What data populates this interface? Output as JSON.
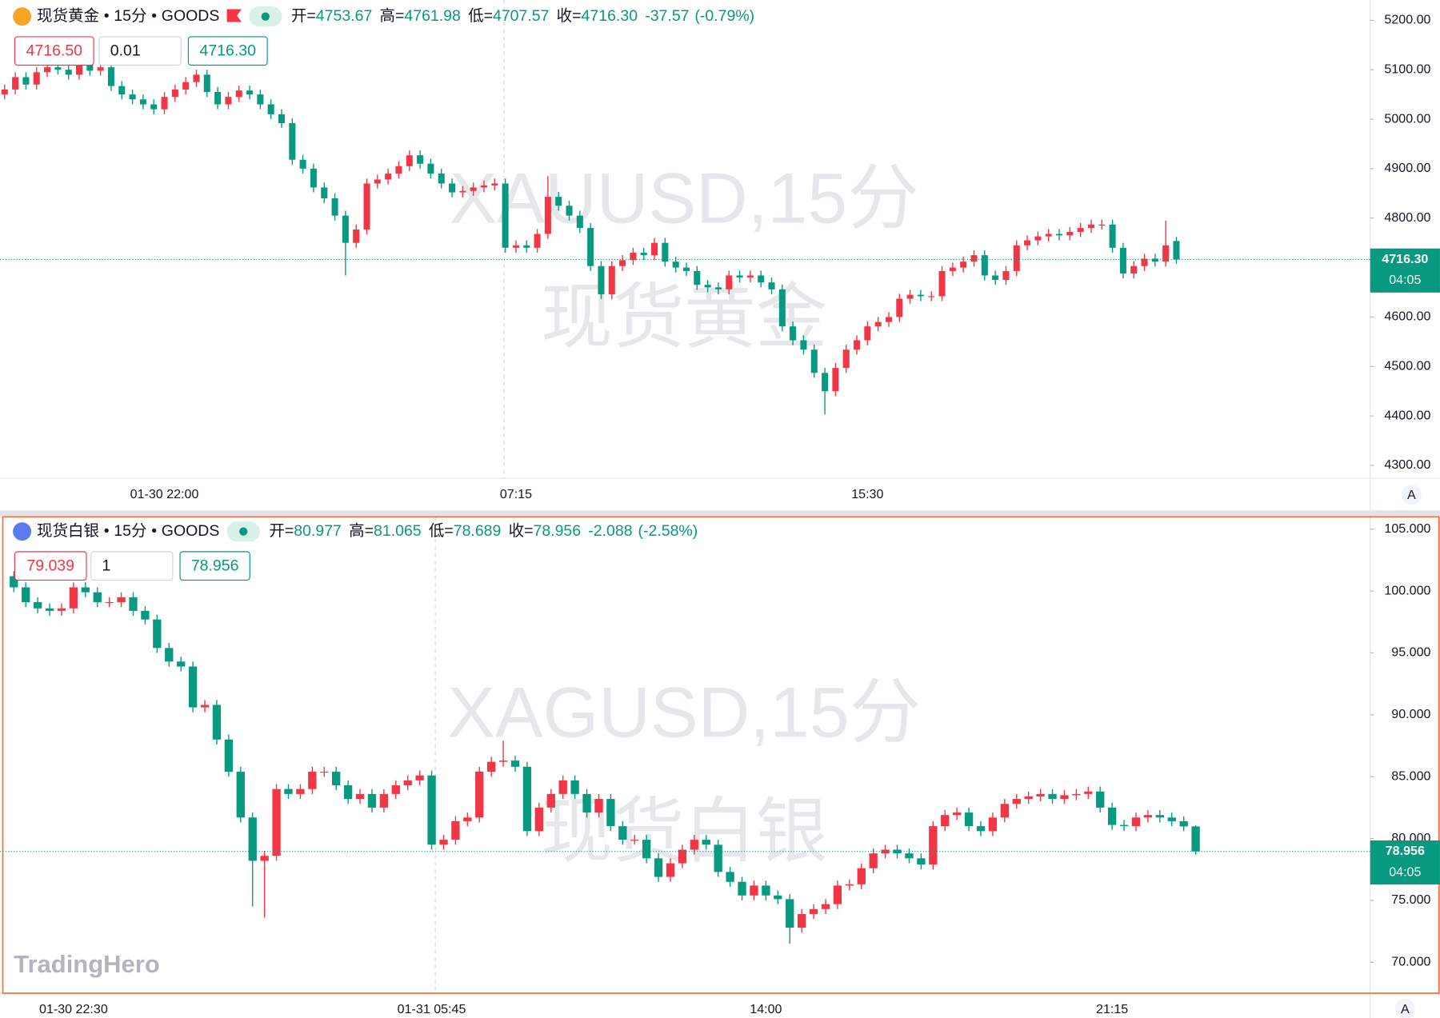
{
  "chart_data": [
    {
      "type": "candlestick",
      "symbol": "现货黄金",
      "separator": "•",
      "interval": "15分",
      "exchange": "GOODS",
      "ohlc_header": [
        {
          "label": "开=",
          "value": "4753.67"
        },
        {
          "label": "高=",
          "value": "4761.98"
        },
        {
          "label": "低=",
          "value": "4707.57"
        },
        {
          "label": "收=",
          "value": "4716.30"
        }
      ],
      "change": "-37.57",
      "change_pct": "(-0.79%)",
      "sell_price": "4716.50",
      "quantity": "0.01",
      "buy_price": "4716.30",
      "watermark": [
        "XAUUSD,15分",
        "现货黄金"
      ],
      "last_price_label": "4716.30",
      "countdown": "04:05",
      "axis_button": "A",
      "up_color": "#f23645",
      "down_color": "#089981",
      "grid": false,
      "ylim": [
        4274,
        5241
      ],
      "yticks": [
        {
          "value": 5200,
          "label": "5200.00"
        },
        {
          "value": 5100,
          "label": "5100.00"
        },
        {
          "value": 5000,
          "label": "5000.00"
        },
        {
          "value": 4900,
          "label": "4900.00"
        },
        {
          "value": 4800,
          "label": "4800.00"
        },
        {
          "value": 4700,
          "label": "4700.00"
        },
        {
          "value": 4600,
          "label": "4600.00"
        },
        {
          "value": 4500,
          "label": "4500.00"
        },
        {
          "value": 4400,
          "label": "4400.00"
        },
        {
          "value": 4300,
          "label": "4300.00"
        }
      ],
      "categories": [
        null,
        null,
        null,
        null,
        null,
        null,
        null,
        null,
        null,
        null,
        null,
        null,
        null,
        null,
        null,
        "01-30 22:00",
        null,
        null,
        null,
        null,
        null,
        null,
        null,
        null,
        null,
        null,
        null,
        null,
        null,
        null,
        null,
        null,
        null,
        null,
        null,
        null,
        null,
        null,
        null,
        null,
        null,
        null,
        null,
        null,
        null,
        null,
        null,
        null,
        "07:15",
        null,
        null,
        null,
        null,
        null,
        null,
        null,
        null,
        null,
        null,
        null,
        null,
        null,
        null,
        null,
        null,
        null,
        null,
        null,
        null,
        null,
        null,
        null,
        null,
        null,
        null,
        null,
        null,
        null,
        null,
        null,
        null,
        "15:30",
        null,
        null,
        null,
        null,
        null,
        null,
        null,
        null,
        null,
        null,
        null,
        null,
        null,
        null,
        null,
        null,
        null,
        null,
        null,
        null,
        null,
        null,
        null,
        null,
        null,
        null,
        null,
        null,
        null
      ],
      "open": [
        5050,
        5060,
        5085,
        5070,
        5095,
        5105,
        5100,
        5090,
        5110,
        5098,
        5105,
        5067,
        5050,
        5040,
        5030,
        5020,
        5045,
        5060,
        5075,
        5090,
        5055,
        5030,
        5045,
        5058,
        5050,
        5030,
        5010,
        4992,
        4918,
        4900,
        4862,
        4840,
        4805,
        4750,
        4777,
        4870,
        4878,
        4890,
        4905,
        4927,
        4910,
        4890,
        4870,
        4852,
        4855,
        4862,
        4866,
        4870,
        4740,
        4745,
        4740,
        4768,
        4843,
        4825,
        4805,
        4780,
        4703,
        4646,
        4703,
        4715,
        4730,
        4725,
        4750,
        4712,
        4700,
        4693,
        4665,
        4660,
        4656,
        4684,
        4680,
        4684,
        4670,
        4656,
        4581,
        4553,
        4534,
        4487,
        4450,
        4497,
        4534,
        4553,
        4581,
        4590,
        4600,
        4637,
        4645,
        4642,
        4642,
        4693,
        4700,
        4712,
        4725,
        4684,
        4675,
        4693,
        4745,
        4755,
        4763,
        4768,
        4765,
        4772,
        4780,
        4787,
        4787,
        4740,
        4688,
        4703,
        4718,
        4712,
        4753.67
      ],
      "high": [
        5070,
        5095,
        5095,
        5105,
        5115,
        5115,
        5110,
        5120,
        5120,
        5115,
        5115,
        5077,
        5060,
        5050,
        5040,
        5055,
        5070,
        5085,
        5100,
        5100,
        5065,
        5055,
        5068,
        5068,
        5060,
        5040,
        5020,
        5002,
        4928,
        4910,
        4872,
        4850,
        4815,
        4787,
        4880,
        4888,
        4900,
        4915,
        4937,
        4937,
        4920,
        4900,
        4880,
        4865,
        4872,
        4876,
        4880,
        4880,
        4755,
        4755,
        4778,
        4885,
        4853,
        4835,
        4815,
        4790,
        4713,
        4713,
        4725,
        4740,
        4740,
        4760,
        4760,
        4722,
        4710,
        4703,
        4675,
        4670,
        4694,
        4694,
        4694,
        4694,
        4680,
        4666,
        4591,
        4563,
        4544,
        4497,
        4507,
        4544,
        4563,
        4591,
        4600,
        4610,
        4647,
        4655,
        4655,
        4652,
        4703,
        4710,
        4722,
        4735,
        4735,
        4694,
        4703,
        4755,
        4765,
        4773,
        4778,
        4778,
        4782,
        4790,
        4797,
        4797,
        4797,
        4750,
        4713,
        4728,
        4728,
        4795,
        4761.98
      ],
      "low": [
        5040,
        5050,
        5060,
        5060,
        5085,
        5090,
        5080,
        5080,
        5088,
        5088,
        5057,
        5040,
        5030,
        5020,
        5010,
        5010,
        5035,
        5050,
        5065,
        5045,
        5020,
        5020,
        5035,
        5040,
        5020,
        5000,
        4982,
        4908,
        4890,
        4852,
        4830,
        4795,
        4684,
        4740,
        4767,
        4860,
        4868,
        4880,
        4895,
        4900,
        4880,
        4860,
        4842,
        4842,
        4845,
        4852,
        4856,
        4730,
        4730,
        4730,
        4730,
        4758,
        4815,
        4795,
        4770,
        4693,
        4636,
        4636,
        4693,
        4705,
        4715,
        4715,
        4702,
        4690,
        4683,
        4655,
        4650,
        4646,
        4646,
        4670,
        4670,
        4660,
        4646,
        4571,
        4543,
        4524,
        4477,
        4403,
        4440,
        4487,
        4524,
        4543,
        4571,
        4580,
        4590,
        4627,
        4632,
        4632,
        4632,
        4683,
        4690,
        4702,
        4674,
        4665,
        4665,
        4683,
        4735,
        4745,
        4753,
        4755,
        4755,
        4762,
        4770,
        4777,
        4730,
        4678,
        4678,
        4693,
        4702,
        4702,
        4707.57
      ],
      "close": [
        5060,
        5085,
        5070,
        5095,
        5105,
        5100,
        5090,
        5110,
        5098,
        5105,
        5067,
        5050,
        5040,
        5030,
        5020,
        5045,
        5060,
        5075,
        5090,
        5055,
        5030,
        5045,
        5058,
        5050,
        5030,
        5010,
        4992,
        4918,
        4900,
        4862,
        4840,
        4805,
        4750,
        4777,
        4870,
        4878,
        4890,
        4905,
        4927,
        4910,
        4890,
        4870,
        4852,
        4855,
        4862,
        4866,
        4870,
        4740,
        4745,
        4740,
        4768,
        4843,
        4825,
        4805,
        4780,
        4703,
        4646,
        4703,
        4715,
        4730,
        4725,
        4750,
        4712,
        4700,
        4693,
        4665,
        4660,
        4656,
        4684,
        4680,
        4684,
        4670,
        4656,
        4581,
        4553,
        4534,
        4487,
        4450,
        4497,
        4534,
        4553,
        4581,
        4590,
        4600,
        4637,
        4645,
        4642,
        4642,
        4693,
        4700,
        4712,
        4725,
        4684,
        4675,
        4693,
        4745,
        4755,
        4763,
        4768,
        4765,
        4772,
        4780,
        4787,
        4787,
        4740,
        4688,
        4703,
        4718,
        4712,
        4745,
        4716.3
      ]
    },
    {
      "type": "candlestick",
      "symbol": "现货白银",
      "separator": "•",
      "interval": "15分",
      "exchange": "GOODS",
      "ohlc_header": [
        {
          "label": "开=",
          "value": "80.977"
        },
        {
          "label": "高=",
          "value": "81.065"
        },
        {
          "label": "低=",
          "value": "78.689"
        },
        {
          "label": "收=",
          "value": "78.956"
        }
      ],
      "change": "-2.088",
      "change_pct": "(-2.58%)",
      "sell_price": "79.039",
      "quantity": "1",
      "buy_price": "78.956",
      "watermark": [
        "XAGUSD,15分",
        "现货白银"
      ],
      "last_price_label": "78.956",
      "countdown": "04:05",
      "axis_button": "A",
      "up_color": "#f23645",
      "down_color": "#089981",
      "grid": false,
      "ylim": [
        67.5,
        106
      ],
      "yticks": [
        {
          "value": 105,
          "label": "105.000"
        },
        {
          "value": 100,
          "label": "100.000"
        },
        {
          "value": 95,
          "label": "95.000"
        },
        {
          "value": 90,
          "label": "90.000"
        },
        {
          "value": 85,
          "label": "85.000"
        },
        {
          "value": 80,
          "label": "80.000"
        },
        {
          "value": 75,
          "label": "75.000"
        },
        {
          "value": 70,
          "label": "70.000"
        }
      ],
      "categories": [
        null,
        null,
        null,
        null,
        null,
        "01-30 22:30",
        null,
        null,
        null,
        null,
        null,
        null,
        null,
        null,
        null,
        null,
        null,
        null,
        null,
        null,
        null,
        null,
        null,
        null,
        null,
        null,
        null,
        null,
        null,
        null,
        null,
        null,
        null,
        null,
        null,
        "01-31 05:45",
        null,
        null,
        null,
        null,
        null,
        null,
        null,
        null,
        null,
        null,
        null,
        null,
        null,
        null,
        null,
        null,
        null,
        null,
        null,
        null,
        null,
        null,
        null,
        null,
        null,
        null,
        null,
        "14:00",
        null,
        null,
        null,
        null,
        null,
        null,
        null,
        null,
        null,
        null,
        null,
        null,
        null,
        null,
        null,
        null,
        null,
        null,
        null,
        null,
        null,
        null,
        null,
        null,
        null,
        null,
        null,
        null,
        "21:15",
        null,
        null,
        null,
        null,
        null,
        null,
        null
      ],
      "open": [
        101.2,
        100.3,
        99.1,
        98.6,
        98.4,
        98.6,
        100.3,
        99.9,
        99.1,
        99.1,
        99.5,
        98.4,
        97.7,
        95.4,
        94.3,
        93.9,
        90.6,
        90.8,
        88.0,
        85.4,
        81.7,
        78.2,
        78.6,
        84.0,
        83.6,
        84.0,
        85.4,
        85.4,
        84.3,
        83.2,
        83.6,
        82.5,
        83.6,
        84.3,
        84.7,
        85.1,
        79.5,
        79.9,
        81.4,
        81.7,
        85.4,
        86.2,
        86.3,
        85.8,
        80.6,
        82.5,
        83.6,
        84.7,
        83.6,
        82.1,
        83.2,
        81.0,
        79.9,
        79.9,
        78.4,
        76.9,
        78.0,
        79.1,
        79.9,
        79.5,
        77.3,
        76.5,
        75.4,
        76.2,
        75.4,
        75.1,
        72.8,
        73.9,
        74.3,
        74.7,
        76.2,
        76.3,
        77.6,
        78.8,
        79.1,
        78.8,
        78.4,
        77.9,
        81.0,
        81.9,
        82.1,
        81.0,
        80.6,
        81.7,
        82.8,
        83.2,
        83.4,
        83.6,
        83.2,
        83.5,
        83.6,
        83.8,
        82.5,
        81.1,
        81.0,
        81.7,
        81.9,
        81.7,
        81.4,
        80.977
      ],
      "high": [
        101.6,
        100.7,
        99.5,
        99.0,
        99.0,
        100.7,
        100.7,
        100.3,
        99.5,
        99.9,
        99.9,
        98.8,
        98.1,
        95.8,
        94.7,
        94.3,
        91.2,
        91.2,
        88.4,
        85.8,
        82.1,
        79.0,
        84.4,
        84.4,
        84.4,
        85.8,
        85.8,
        85.8,
        84.7,
        84.0,
        84.0,
        84.0,
        84.7,
        85.1,
        85.5,
        85.5,
        80.3,
        81.8,
        82.1,
        85.8,
        86.6,
        87.9,
        86.7,
        86.2,
        82.9,
        84.0,
        85.1,
        85.1,
        84.0,
        83.6,
        83.6,
        81.4,
        80.3,
        80.3,
        78.8,
        78.4,
        79.5,
        80.3,
        80.3,
        79.9,
        77.7,
        76.9,
        76.6,
        76.6,
        75.8,
        75.5,
        74.3,
        74.7,
        75.1,
        76.6,
        76.7,
        78.0,
        79.2,
        79.5,
        79.5,
        79.2,
        78.8,
        81.4,
        82.3,
        82.5,
        82.5,
        81.4,
        82.1,
        83.2,
        83.6,
        83.8,
        84.0,
        84.0,
        83.9,
        84.0,
        84.2,
        84.2,
        82.9,
        81.5,
        82.1,
        82.3,
        82.3,
        82.1,
        81.8,
        81.065
      ],
      "low": [
        99.9,
        98.7,
        98.2,
        98.0,
        98.0,
        98.2,
        99.5,
        98.7,
        98.7,
        98.7,
        98.0,
        97.3,
        95.0,
        93.9,
        93.5,
        90.2,
        90.2,
        87.6,
        85.0,
        81.3,
        74.5,
        73.6,
        78.2,
        83.2,
        83.2,
        83.6,
        85.0,
        83.9,
        82.8,
        82.8,
        82.1,
        82.1,
        83.2,
        83.9,
        84.3,
        79.1,
        79.1,
        79.5,
        81.0,
        81.3,
        85.0,
        85.8,
        85.4,
        80.2,
        80.2,
        82.1,
        83.2,
        83.2,
        81.7,
        81.7,
        80.6,
        79.5,
        79.5,
        78.0,
        76.5,
        76.5,
        77.6,
        78.7,
        79.1,
        76.9,
        76.1,
        75.0,
        75.0,
        75.0,
        74.7,
        71.5,
        72.4,
        73.5,
        73.9,
        74.3,
        75.8,
        75.9,
        77.2,
        78.4,
        78.4,
        78.0,
        77.5,
        77.5,
        80.6,
        81.5,
        80.6,
        80.2,
        80.2,
        81.3,
        82.4,
        82.8,
        83.0,
        82.8,
        82.8,
        83.1,
        83.2,
        82.1,
        80.7,
        80.6,
        80.6,
        81.3,
        81.3,
        81.0,
        80.6,
        78.689
      ],
      "close": [
        100.3,
        99.1,
        98.6,
        98.4,
        98.6,
        100.3,
        99.9,
        99.1,
        99.1,
        99.5,
        98.4,
        97.7,
        95.4,
        94.3,
        93.9,
        90.6,
        90.8,
        88.0,
        85.4,
        81.7,
        78.2,
        78.6,
        84.0,
        83.6,
        84.0,
        85.4,
        85.4,
        84.3,
        83.2,
        83.6,
        82.5,
        83.6,
        84.3,
        84.7,
        85.1,
        79.5,
        79.9,
        81.4,
        81.7,
        85.4,
        86.2,
        86.3,
        85.8,
        80.6,
        82.5,
        83.6,
        84.7,
        83.6,
        82.1,
        83.2,
        81.0,
        79.9,
        79.9,
        78.4,
        76.9,
        78.0,
        79.1,
        79.9,
        79.5,
        77.3,
        76.5,
        75.4,
        76.2,
        75.4,
        75.1,
        72.8,
        73.9,
        74.3,
        74.7,
        76.2,
        76.3,
        77.6,
        78.8,
        79.1,
        78.8,
        78.4,
        77.9,
        81.0,
        81.9,
        82.1,
        81.0,
        80.6,
        81.7,
        82.8,
        83.2,
        83.4,
        83.6,
        83.2,
        83.5,
        83.6,
        83.8,
        82.5,
        81.1,
        81.0,
        81.7,
        81.9,
        81.7,
        81.4,
        80.98,
        78.956
      ]
    }
  ],
  "logo": "TradingHero"
}
